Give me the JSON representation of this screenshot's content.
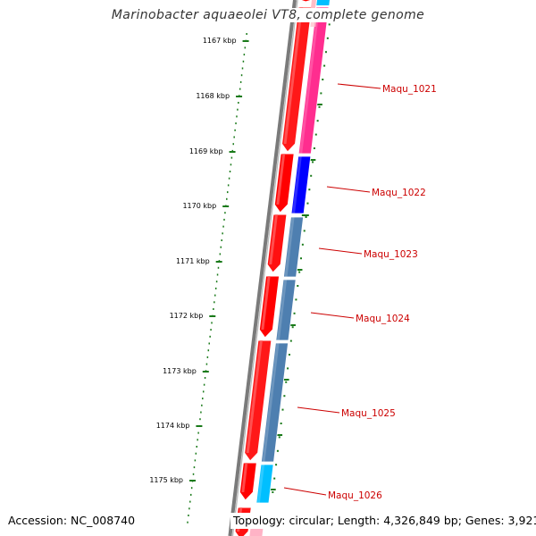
{
  "title": "Marinobacter aquaeolei VT8, complete genome",
  "footer": {
    "accession": "Accession: NC_008740",
    "summary": "Topology: circular; Length: 4,326,849 bp; Genes: 3,921"
  },
  "colors": {
    "axis_ticks": "#1a7a1a",
    "backbone": "#7a7a7a",
    "cds_forward": "#ff0000",
    "label": "#cc0000"
  },
  "axis_labels": [
    "1167 kbp",
    "1168 kbp",
    "1169 kbp",
    "1170 kbp",
    "1171 kbp",
    "1172 kbp",
    "1173 kbp",
    "1174 kbp",
    "1175 kbp"
  ],
  "genes": [
    {
      "label": "Maqu_1021",
      "color": "#ff2d8f"
    },
    {
      "label": "Maqu_1022",
      "color": "#0000ff"
    },
    {
      "label": "Maqu_1023",
      "color": "#4e7fb0"
    },
    {
      "label": "Maqu_1024",
      "color": "#4e7fb0"
    },
    {
      "label": "Maqu_1025",
      "color": "#4e7fb0"
    },
    {
      "label": "Maqu_1026",
      "color": "#00bfff"
    }
  ]
}
